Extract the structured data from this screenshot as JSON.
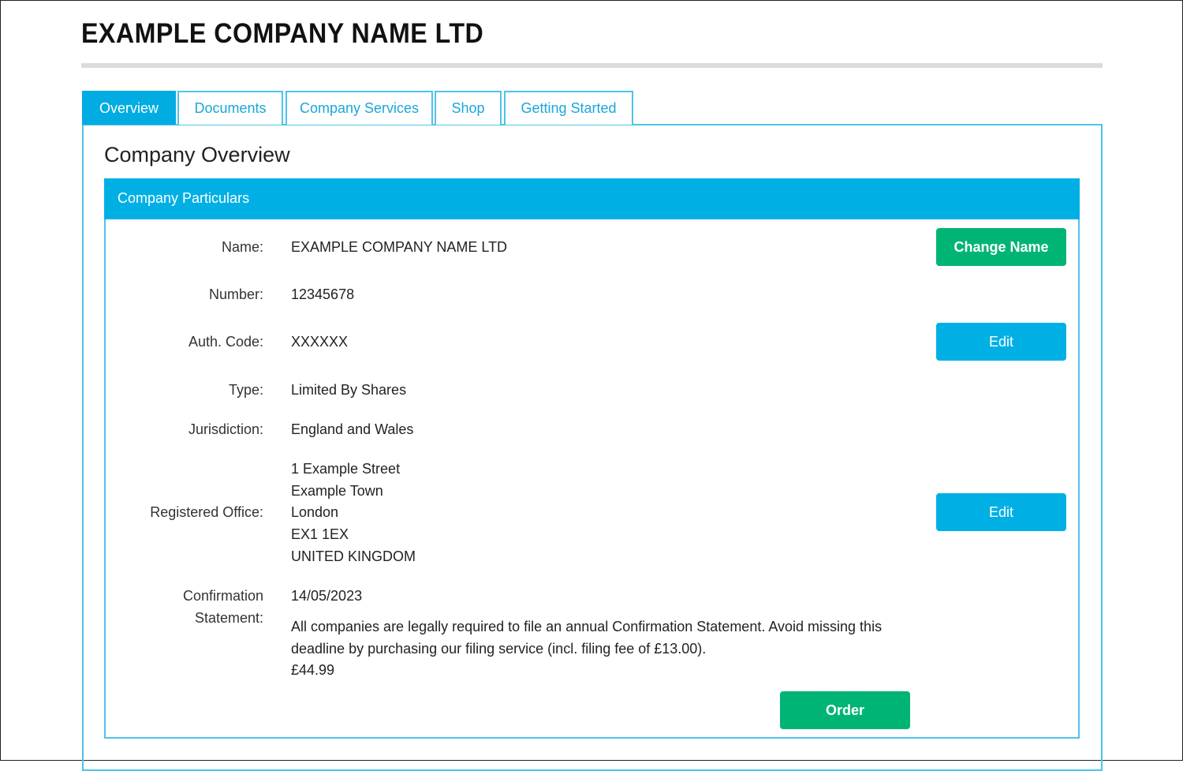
{
  "header": {
    "title": "EXAMPLE COMPANY NAME LTD"
  },
  "tabs": [
    {
      "label": "Overview",
      "active": true
    },
    {
      "label": "Documents"
    },
    {
      "label": "Company Services"
    },
    {
      "label": "Shop"
    },
    {
      "label": "Getting Started"
    }
  ],
  "main": {
    "heading": "Company Overview",
    "section_title": "Company Particulars",
    "fields": {
      "name": {
        "label": "Name:",
        "value": "EXAMPLE COMPANY NAME LTD"
      },
      "number": {
        "label": "Number:",
        "value": "12345678"
      },
      "auth_code": {
        "label": "Auth. Code:",
        "value": "XXXXXX"
      },
      "type": {
        "label": "Type:",
        "value": "Limited By Shares"
      },
      "jurisdiction": {
        "label": "Jurisdiction:",
        "value": "England and Wales"
      },
      "registered_office": {
        "label": "Registered Office:",
        "lines": [
          "1 Example Street",
          "Example Town",
          "London",
          "EX1 1EX",
          "UNITED KINGDOM"
        ]
      },
      "confirmation": {
        "label_line1": "Confirmation",
        "label_line2": "Statement:",
        "date": "14/05/2023",
        "notice_line1": "All companies are legally required to file an annual Confirmation Statement. Avoid missing this",
        "notice_line2": "deadline by purchasing our filing service (incl. filing fee of £13.00).",
        "price": "£44.99"
      }
    },
    "buttons": {
      "change_name": "Change Name",
      "edit_auth": "Edit",
      "edit_office": "Edit",
      "order": "Order"
    }
  },
  "colors": {
    "accent": "#00b0e4",
    "green": "#00b574"
  }
}
